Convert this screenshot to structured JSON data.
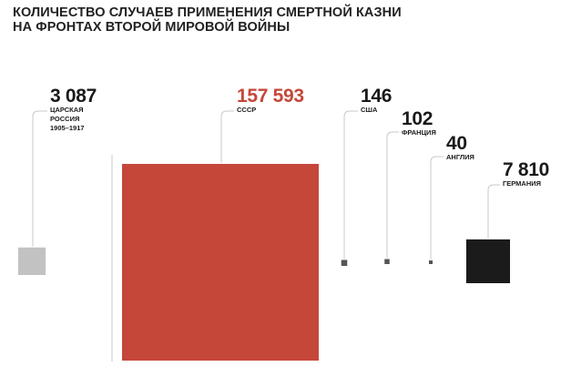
{
  "title_lines": [
    "КОЛИЧЕСТВО СЛУЧАЕВ ПРИМЕНЕНИЯ СМЕРТНОЙ КАЗНИ",
    "НА ФРОНТАХ ВТОРОЙ МИРОВОЙ ВОЙНЫ"
  ],
  "chart_data": {
    "type": "proportional-area squares",
    "title": "КОЛИЧЕСТВО СЛУЧАЕВ ПРИМЕНЕНИЯ СМЕРТНОЙ КАЗНИ НА ФРОНТАХ ВТОРОЙ МИРОВОЙ ВОЙНЫ",
    "categories": [
      "ЦАРСКАЯ РОССИЯ 1905–1917",
      "СССР",
      "США",
      "ФРАНЦИЯ",
      "АНГЛИЯ",
      "ГЕРМАНИЯ"
    ],
    "values": [
      3087,
      157593,
      146,
      102,
      40,
      7810
    ],
    "items": [
      {
        "value": 3087,
        "value_label": "3 087",
        "label_lines": [
          "ЦАРСКАЯ",
          "РОССИЯ",
          "1905–1917"
        ],
        "color": "#c2c2c2",
        "value_color": "#1a1a1a"
      },
      {
        "value": 157593,
        "value_label": "157 593",
        "label_lines": [
          "СССР"
        ],
        "color": "#c5473a",
        "value_color": "#c5473a"
      },
      {
        "value": 146,
        "value_label": "146",
        "label_lines": [
          "США"
        ],
        "color": "#555555",
        "value_color": "#1a1a1a"
      },
      {
        "value": 102,
        "value_label": "102",
        "label_lines": [
          "ФРАНЦИЯ"
        ],
        "color": "#555555",
        "value_color": "#1a1a1a"
      },
      {
        "value": 40,
        "value_label": "40",
        "label_lines": [
          "АНГЛИЯ"
        ],
        "color": "#555555",
        "value_color": "#1a1a1a"
      },
      {
        "value": 7810,
        "value_label": "7 810",
        "label_lines": [
          "ГЕРМАНИЯ"
        ],
        "color": "#1b1b1b",
        "value_color": "#1a1a1a"
      }
    ],
    "connector_color": "#c8c8c8"
  }
}
